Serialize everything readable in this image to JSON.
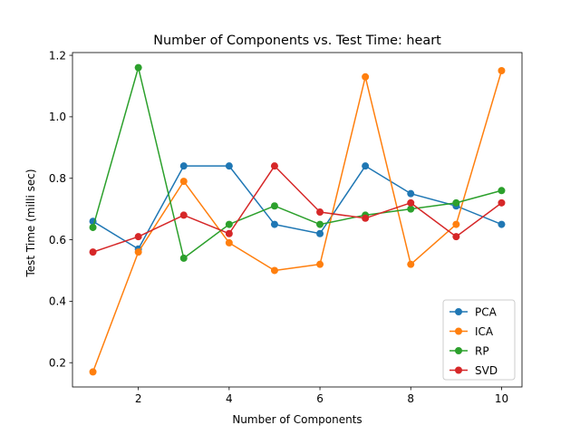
{
  "chart_data": {
    "type": "line",
    "title": "Number of Components vs. Test Time: heart",
    "xlabel": "Number of Components",
    "ylabel": "Test Time (milli sec)",
    "x": [
      1,
      2,
      3,
      4,
      5,
      6,
      7,
      8,
      9,
      10
    ],
    "xlim": [
      0.55,
      10.45
    ],
    "ylim": [
      0.121,
      1.209
    ],
    "xticks": [
      2,
      4,
      6,
      8,
      10
    ],
    "xtick_labels": [
      "2",
      "4",
      "6",
      "8",
      "10"
    ],
    "yticks": [
      0.2,
      0.4,
      0.6,
      0.8,
      1.0,
      1.2
    ],
    "ytick_labels": [
      "0.2",
      "0.4",
      "0.6",
      "0.8",
      "1.0",
      "1.2"
    ],
    "grid": false,
    "legend_position": "lower-right",
    "series": [
      {
        "name": "PCA",
        "color": "#1f77b4",
        "values": [
          0.66,
          0.57,
          0.84,
          0.84,
          0.65,
          0.62,
          0.84,
          0.75,
          0.71,
          0.65
        ]
      },
      {
        "name": "ICA",
        "color": "#ff7f0e",
        "values": [
          0.17,
          0.56,
          0.79,
          0.59,
          0.5,
          0.52,
          1.13,
          0.52,
          0.65,
          1.15
        ]
      },
      {
        "name": "RP",
        "color": "#2ca02c",
        "values": [
          0.64,
          1.16,
          0.54,
          0.65,
          0.71,
          0.65,
          0.68,
          0.7,
          0.72,
          0.76
        ]
      },
      {
        "name": "SVD",
        "color": "#d62728",
        "values": [
          0.56,
          0.61,
          0.68,
          0.62,
          0.84,
          0.69,
          0.67,
          0.72,
          0.61,
          0.72
        ]
      }
    ]
  }
}
